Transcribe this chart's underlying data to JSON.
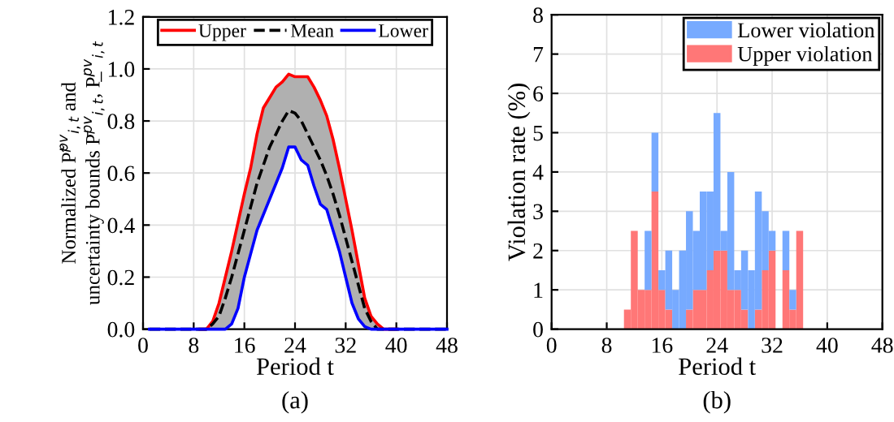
{
  "chart_data": [
    {
      "type": "line",
      "xlabel": "Period t",
      "ylabel": "Normalized P̃$^{pv}$$_{i,t}$ and\nuncertainty bounds P̄$^{pv}$$_{i,t}$, P̲$^{pv}$$_{i,t}$",
      "x": [
        1,
        2,
        3,
        4,
        5,
        6,
        7,
        8,
        9,
        10,
        11,
        12,
        13,
        14,
        15,
        16,
        17,
        18,
        19,
        20,
        21,
        22,
        23,
        24,
        25,
        26,
        27,
        28,
        29,
        30,
        31,
        32,
        33,
        34,
        35,
        36,
        37,
        38,
        39,
        40,
        41,
        42,
        43,
        44,
        45,
        46,
        47,
        48
      ],
      "series": [
        {
          "name": "Upper",
          "color": "#ff0000",
          "line_style": "solid",
          "values": [
            null,
            null,
            null,
            null,
            null,
            null,
            null,
            null,
            0,
            0,
            0.03,
            0.1,
            0.2,
            0.3,
            0.41,
            0.52,
            0.62,
            0.75,
            0.85,
            0.89,
            0.93,
            0.95,
            0.98,
            0.97,
            0.97,
            0.97,
            0.93,
            0.88,
            0.82,
            0.73,
            0.62,
            0.5,
            0.38,
            0.25,
            0.12,
            0.05,
            0.02,
            0,
            0,
            0,
            null,
            null,
            null,
            null,
            null,
            null,
            null,
            null
          ]
        },
        {
          "name": "Mean",
          "color": "#000000",
          "line_style": "dashed",
          "values": [
            0,
            0,
            0,
            0,
            0,
            0,
            0,
            0,
            0,
            0,
            0.02,
            0.05,
            0.12,
            0.2,
            0.29,
            0.38,
            0.47,
            0.56,
            0.63,
            0.7,
            0.75,
            0.8,
            0.84,
            0.83,
            0.8,
            0.75,
            0.7,
            0.65,
            0.59,
            0.52,
            0.44,
            0.35,
            0.26,
            0.17,
            0.08,
            0.03,
            0,
            0,
            0,
            0,
            0,
            0,
            0,
            0,
            0,
            0,
            0,
            0
          ],
          "lower": [
            0,
            0,
            0,
            0,
            0,
            0,
            0,
            0,
            0,
            0,
            0,
            0,
            0,
            0.02,
            0.08,
            0.2,
            0.29,
            0.38,
            0.44,
            0.5,
            0.56,
            0.62,
            0.7,
            0.7,
            0.65,
            0.63,
            0.55,
            0.48,
            0.46,
            0.38,
            0.3,
            0.2,
            0.1,
            0.04,
            0.01,
            0,
            0,
            0,
            0,
            0,
            0,
            0,
            0,
            0,
            0,
            0,
            0,
            0
          ],
          "upper": [
            0,
            0,
            0,
            0,
            0,
            0,
            0,
            0,
            0,
            0,
            0.03,
            0.1,
            0.2,
            0.3,
            0.41,
            0.52,
            0.62,
            0.75,
            0.85,
            0.89,
            0.93,
            0.95,
            0.98,
            0.97,
            0.97,
            0.97,
            0.93,
            0.88,
            0.82,
            0.73,
            0.62,
            0.5,
            0.38,
            0.25,
            0.12,
            0.05,
            0.02,
            0,
            0,
            0,
            0,
            0,
            0,
            0,
            0,
            0,
            0,
            0
          ]
        },
        {
          "name": "Lower",
          "color": "#0000ff",
          "line_style": "solid",
          "values": [
            0,
            0,
            0,
            0,
            0,
            0,
            0,
            0,
            0,
            0,
            0,
            0,
            0,
            0.02,
            0.08,
            0.2,
            0.29,
            0.38,
            0.44,
            0.5,
            0.56,
            0.62,
            0.7,
            0.7,
            0.65,
            0.63,
            0.55,
            0.48,
            0.46,
            0.38,
            0.3,
            0.2,
            0.1,
            0.04,
            0.01,
            0,
            0,
            0,
            0,
            0,
            0,
            0,
            0,
            0,
            0,
            0,
            0,
            0
          ]
        }
      ],
      "xlim": [
        0,
        48
      ],
      "xticks": [
        0,
        8,
        16,
        24,
        32,
        40,
        48
      ],
      "ylim": [
        0,
        1.2
      ],
      "yticks": [
        {
          "value": 0,
          "label": "0.0"
        },
        0.2,
        0.4,
        0.6,
        0.8,
        {
          "value": 1,
          "label": "1.0"
        },
        1.2
      ],
      "grid": true,
      "legend": "top",
      "annotations": [
        "(a)"
      ]
    },
    {
      "type": "bar",
      "stacked": true,
      "xlabel": "Period t",
      "ylabel": "Violation rate (%)",
      "x": [
        1,
        2,
        3,
        4,
        5,
        6,
        7,
        8,
        9,
        10,
        11,
        12,
        13,
        14,
        15,
        16,
        17,
        18,
        19,
        20,
        21,
        22,
        23,
        24,
        25,
        26,
        27,
        28,
        29,
        30,
        31,
        32,
        33,
        34,
        35,
        36,
        37,
        38,
        39,
        40,
        41,
        42,
        43,
        44,
        45,
        46,
        47,
        48
      ],
      "series": [
        {
          "name": "Upper violation",
          "color": "#ff7777",
          "values": [
            0,
            0,
            0,
            0,
            0,
            0,
            0,
            0,
            0,
            0,
            0.5,
            2.5,
            1,
            1,
            3.5,
            1,
            0.5,
            0,
            0,
            0.5,
            1,
            1,
            1.5,
            2,
            2,
            1,
            1,
            0.5,
            0,
            0.5,
            1.5,
            2,
            0,
            1.5,
            0.5,
            2.5,
            0,
            0,
            0,
            0,
            0,
            0,
            0,
            0,
            0,
            0,
            0,
            0
          ]
        },
        {
          "name": "Lower violation",
          "color": "#77aaff",
          "values": [
            0,
            0,
            0,
            0,
            0,
            0,
            0,
            0,
            0,
            0,
            0,
            0,
            0,
            1.5,
            1.5,
            0.5,
            1.5,
            1,
            2,
            2.5,
            1.5,
            2.5,
            2,
            3.5,
            0.5,
            3,
            0.5,
            1.5,
            1.5,
            3,
            1.5,
            0.5,
            0,
            1,
            0.5,
            0,
            0,
            0,
            0,
            0,
            0,
            0,
            0,
            0,
            0,
            0,
            0,
            0
          ]
        }
      ],
      "xlim": [
        0,
        48
      ],
      "xticks": [
        0,
        8,
        16,
        24,
        32,
        40,
        48
      ],
      "ylim": [
        0,
        8
      ],
      "yticks": [
        0,
        1,
        2,
        3,
        4,
        5,
        6,
        7,
        8
      ],
      "grid": true,
      "legend": "top right",
      "annotations": [
        "(b)"
      ]
    }
  ]
}
